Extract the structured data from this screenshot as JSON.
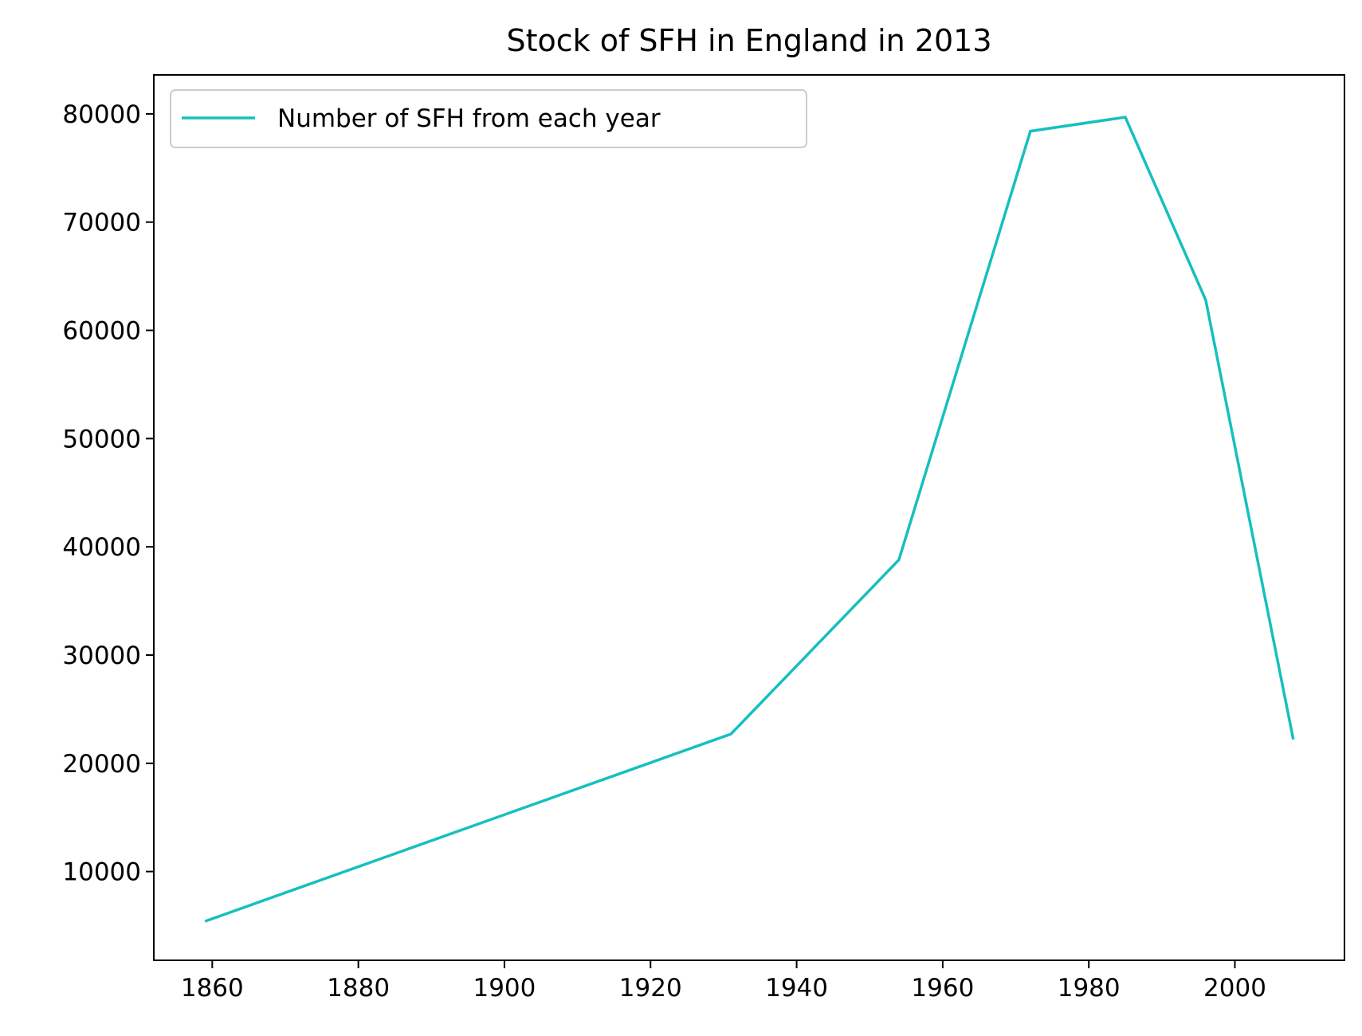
{
  "chart_data": {
    "type": "line",
    "title": "Stock of SFH in England in 2013",
    "xlabel": "",
    "ylabel": "",
    "xlim": [
      1852,
      2015
    ],
    "ylim": [
      1800,
      83600
    ],
    "x_ticks": [
      1860,
      1880,
      1900,
      1920,
      1940,
      1960,
      1980,
      2000
    ],
    "y_ticks": [
      10000,
      20000,
      30000,
      40000,
      50000,
      60000,
      70000,
      80000
    ],
    "grid": false,
    "legend_position": "upper-left",
    "series": [
      {
        "name": "Number of SFH from each year",
        "color": "#17bfbf",
        "x": [
          1859,
          1931,
          1954,
          1972,
          1985,
          1996,
          2008
        ],
        "y": [
          5400,
          22700,
          38800,
          78400,
          79700,
          62800,
          22200
        ]
      }
    ]
  }
}
